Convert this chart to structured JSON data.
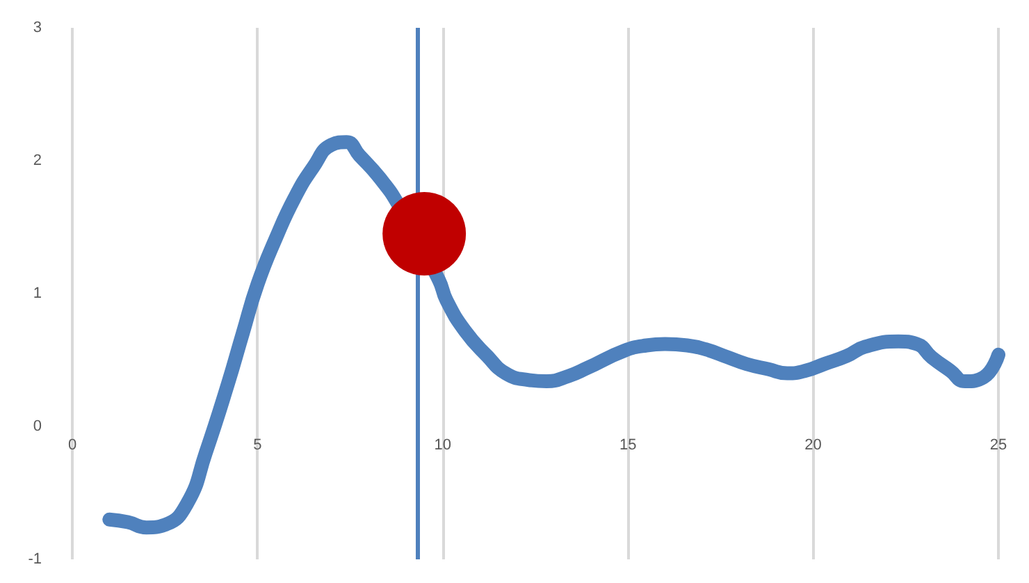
{
  "chart_data": {
    "type": "line",
    "xlim": [
      0,
      25
    ],
    "ylim": [
      -1,
      3
    ],
    "xticks": [
      0,
      5,
      10,
      15,
      20,
      25
    ],
    "yticks": [
      -1,
      0,
      1,
      2,
      3
    ],
    "grid": "x",
    "marker": "none",
    "line_style": "solid",
    "series": [
      {
        "color": "#4f81bd",
        "x": [
          1.0,
          1.5,
          2.0,
          2.5,
          3.1,
          3.6,
          4.2,
          4.6,
          5.0,
          5.5,
          6.0,
          6.5,
          7.0,
          7.4,
          7.75,
          8.3,
          8.8,
          9.9,
          10.1,
          10.6,
          11.2,
          11.7,
          12.3,
          12.8,
          13.4,
          13.9,
          14.9,
          15.5,
          16.0,
          16.6,
          17.1,
          17.7,
          18.2,
          18.8,
          19.3,
          19.8,
          20.3,
          20.9,
          21.4,
          22.3,
          22.8,
          23.2,
          23.7,
          24.1,
          24.6,
          25.0
        ],
        "values": [
          -0.7,
          -0.72,
          -0.76,
          -0.74,
          -0.58,
          -0.2,
          0.32,
          0.7,
          1.07,
          1.42,
          1.72,
          1.95,
          2.12,
          2.14,
          2.04,
          1.87,
          1.67,
          1.1,
          0.95,
          0.72,
          0.53,
          0.4,
          0.35,
          0.34,
          0.38,
          0.44,
          0.57,
          0.61,
          0.62,
          0.61,
          0.58,
          0.52,
          0.47,
          0.43,
          0.4,
          0.42,
          0.47,
          0.53,
          0.6,
          0.64,
          0.62,
          0.52,
          0.42,
          0.34,
          0.37,
          0.54
        ]
      },
      {
        "type": "scatter",
        "color": "#c00000",
        "marker": "circle",
        "x": [
          9.5
        ],
        "values": [
          1.45
        ]
      }
    ],
    "ref_lines": [
      {
        "axis": "x",
        "value": 9.3,
        "color": "#4f81bd",
        "line_style": "solid"
      }
    ]
  }
}
